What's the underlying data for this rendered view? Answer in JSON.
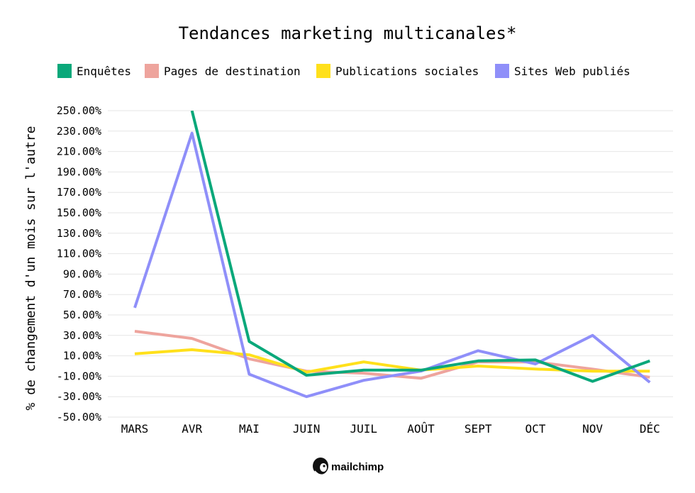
{
  "chart_data": {
    "type": "line",
    "title": "Tendances marketing multicanales*",
    "xlabel": "",
    "ylabel": "% de changement d'un mois sur l'autre",
    "categories": [
      "MARS",
      "AVR",
      "MAI",
      "JUIN",
      "JUIL",
      "AOÛT",
      "SEPT",
      "OCT",
      "NOV",
      "DÉC"
    ],
    "ylim": [
      -50,
      250
    ],
    "yticks": [
      250,
      230,
      210,
      190,
      170,
      150,
      130,
      110,
      90,
      70,
      50,
      30,
      10,
      -10,
      -30,
      -50
    ],
    "ytick_labels": [
      "250.00%",
      "230.00%",
      "210.00%",
      "190.00%",
      "170.00%",
      "150.00%",
      "130.00%",
      "110.00%",
      "90.00%",
      "70.00%",
      "50.00%",
      "30.00%",
      "10.00%",
      "-10.00%",
      "-30.00%",
      "-50.00%"
    ],
    "grid": true,
    "legend_position": "top",
    "series": [
      {
        "name": "Enquêtes",
        "color": "#0aa87a",
        "values": [
          null,
          250,
          24,
          -9,
          -4,
          -4,
          5,
          6,
          -15,
          5
        ]
      },
      {
        "name": "Pages de destination",
        "color": "#eea49d",
        "values": [
          34,
          27,
          7,
          -5,
          -7,
          -12,
          4,
          4,
          -3,
          -11
        ]
      },
      {
        "name": "Publications sociales",
        "color": "#ffe01b",
        "values": [
          12,
          16,
          11,
          -6,
          4,
          -4,
          0,
          -3,
          -5,
          -5
        ]
      },
      {
        "name": "Sites Web publiés",
        "color": "#8f8ff9",
        "values": [
          57,
          228,
          -8,
          -30,
          -14,
          -5,
          15,
          2,
          30,
          -16
        ]
      }
    ]
  },
  "brand": {
    "name": "mailchimp"
  }
}
